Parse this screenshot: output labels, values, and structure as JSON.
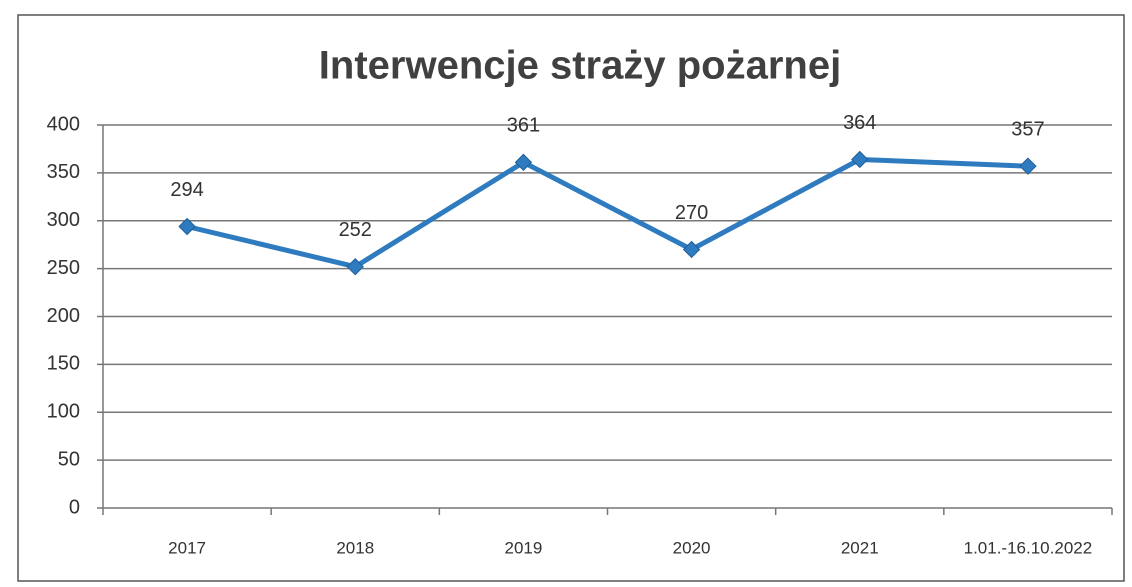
{
  "chart_data": {
    "type": "line",
    "title": "Interwencje straży pożarnej",
    "categories": [
      "2017",
      "2018",
      "2019",
      "2020",
      "2021",
      "1.01.-16.10.2022"
    ],
    "values": [
      294,
      252,
      361,
      270,
      364,
      357
    ],
    "color": "#2f7bbf",
    "ylim": [
      0,
      400
    ],
    "yticks": [
      0,
      50,
      100,
      150,
      200,
      250,
      300,
      350,
      400
    ],
    "grid": true
  }
}
